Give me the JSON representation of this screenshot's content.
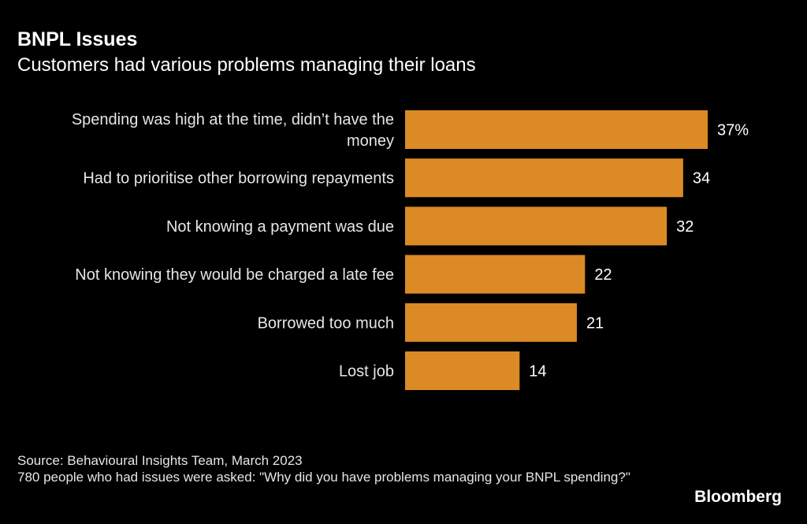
{
  "chart_data": {
    "type": "bar",
    "orientation": "horizontal",
    "title": "BNPL Issues",
    "subtitle": "Customers had various problems managing their loans",
    "categories": [
      [
        "Spending was high at the time, didn’t have the",
        "money"
      ],
      [
        "Had to prioritise other borrowing repayments"
      ],
      [
        "Not knowing a payment was due"
      ],
      [
        "Not knowing they would be charged a late fee"
      ],
      [
        "Borrowed too much"
      ],
      [
        "Lost job"
      ]
    ],
    "values": [
      37,
      34,
      32,
      22,
      21,
      14
    ],
    "data_labels": [
      "37%",
      "34",
      "32",
      "22",
      "21",
      "14"
    ],
    "unit": "%",
    "xlim": [
      0,
      37
    ],
    "grid": false,
    "bar_color": "#db8a25",
    "background": "#000000"
  },
  "footer": {
    "source": "Source: Behavioural Insights Team, March 2023",
    "note": "780 people who had issues were asked: \"Why did you have problems managing your BNPL spending?\"",
    "logo": "Bloomberg"
  }
}
